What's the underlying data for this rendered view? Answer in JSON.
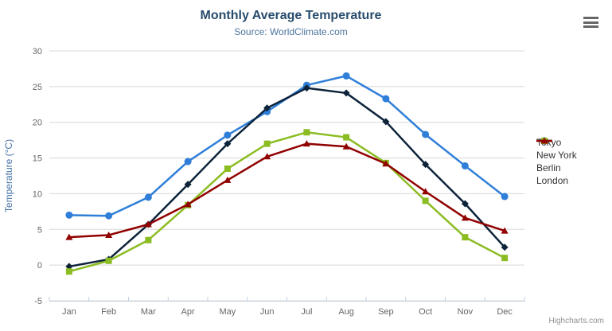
{
  "chart_data": {
    "type": "line",
    "title": "Monthly Average Temperature",
    "subtitle": "Source: WorldClimate.com",
    "xlabel": "",
    "ylabel": "Temperature (°C)",
    "ylim": [
      -5,
      30
    ],
    "ytick_step": 5,
    "yticks": [
      -5,
      0,
      5,
      10,
      15,
      20,
      25,
      30
    ],
    "grid": true,
    "legend_position": "right",
    "categories": [
      "Jan",
      "Feb",
      "Mar",
      "Apr",
      "May",
      "Jun",
      "Jul",
      "Aug",
      "Sep",
      "Oct",
      "Nov",
      "Dec"
    ],
    "series": [
      {
        "name": "Tokyo",
        "color": "#2f7ed8",
        "marker": "circle",
        "values": [
          7.0,
          6.9,
          9.5,
          14.5,
          18.2,
          21.5,
          25.2,
          26.5,
          23.3,
          18.3,
          13.9,
          9.6
        ]
      },
      {
        "name": "New York",
        "color": "#0d233a",
        "marker": "diamond",
        "values": [
          -0.2,
          0.8,
          5.7,
          11.3,
          17.0,
          22.0,
          24.8,
          24.1,
          20.1,
          14.1,
          8.6,
          2.5
        ]
      },
      {
        "name": "Berlin",
        "color": "#8bbc21",
        "marker": "square",
        "values": [
          -0.9,
          0.6,
          3.5,
          8.4,
          13.5,
          17.0,
          18.6,
          17.9,
          14.3,
          9.0,
          3.9,
          1.0
        ]
      },
      {
        "name": "London",
        "color": "#910000",
        "marker": "triangle",
        "values": [
          3.9,
          4.2,
          5.7,
          8.5,
          11.9,
          15.2,
          17.0,
          16.6,
          14.2,
          10.3,
          6.6,
          4.8
        ]
      }
    ]
  },
  "styles": {
    "grid_color": "#d8d8d8",
    "axis_line_color": "#c0d0e0",
    "axis_label_color": "#666666",
    "y_title_color": "#4572a7",
    "title_color": "#274b6d",
    "subtitle_color": "#4d759e",
    "legend_text_color": "#333333"
  },
  "credits": {
    "text": "Highcharts.com"
  },
  "export_menu": {
    "icon": "hamburger-icon"
  }
}
